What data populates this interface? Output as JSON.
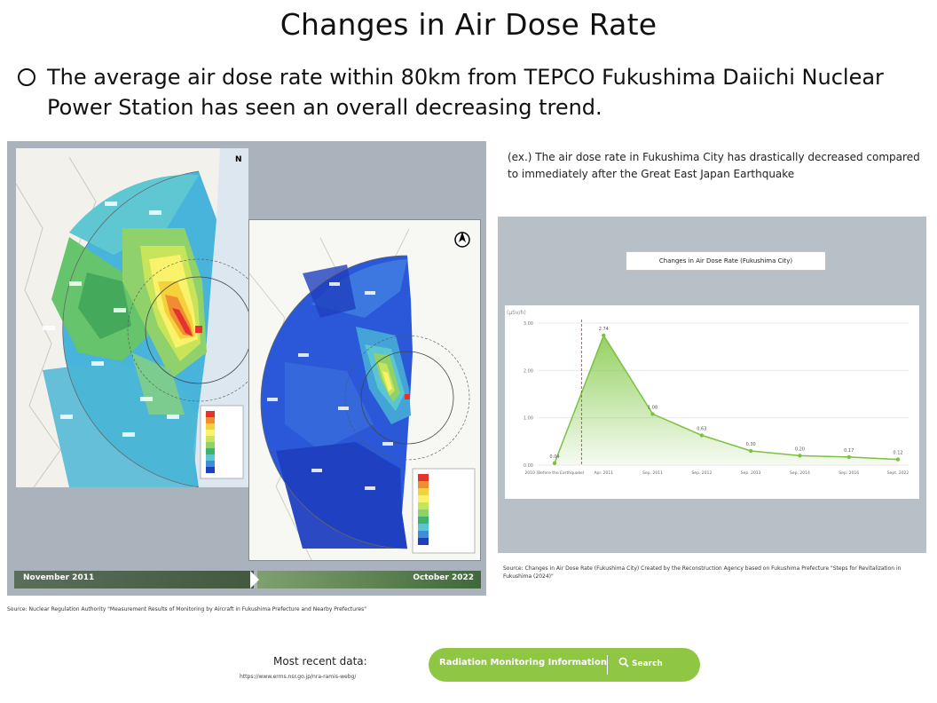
{
  "page": {
    "title": "Changes in Air Dose Rate",
    "bullet": "The average air dose rate within 80km from TEPCO Fukushima Daiichi Nuclear Power Station has seen an overall decreasing trend."
  },
  "left_panel": {
    "timeline_start": "November 2011",
    "timeline_end": "October 2022",
    "compass_label": "N",
    "source": "Source: Nuclear Regulation Authority \"Measurement Results of Monitoring by Aircraft in Fukushima Prefecture and Nearby Prefectures\"",
    "legend_colors": [
      "#e5322f",
      "#f08c32",
      "#f5d13b",
      "#faf26a",
      "#c7e45a",
      "#8fd16b",
      "#3fb36b",
      "#5cc6d0",
      "#3c8fd8",
      "#1f3fbf"
    ]
  },
  "right_panel": {
    "note": "(ex.) The air dose rate in Fukushima City has drastically decreased compared to immediately after the Great East Japan Earthquake",
    "source": "Source: Changes in Air Dose Rate (Fukushima City) Created by the Reconstruction Agency based on Fukushima Prefecture \"Steps for Revitalization in Fukushima (2024)\""
  },
  "chart_data": {
    "type": "area",
    "title": "Changes in Air Dose Rate (Fukushima City)",
    "ylabel": "(µSv/h)",
    "ylim": [
      0,
      3.0
    ],
    "yticks": [
      "0.00",
      "1.00",
      "2.00",
      "3.00"
    ],
    "series": [
      {
        "x": [
          "2010 (Before the Earthquake)",
          "Apr. 2011",
          "Sep. 2011",
          "Sep. 2012",
          "Sep. 2013",
          "Sep. 2014",
          "Sep. 2016",
          "Sept. 2022"
        ],
        "values": [
          0.04,
          2.74,
          1.08,
          0.63,
          0.3,
          0.2,
          0.17,
          0.12
        ],
        "labels": [
          "0.04",
          "2.74",
          "1.08",
          "0.63",
          "0.30",
          "0.20",
          "0.17",
          "0.12"
        ]
      }
    ],
    "line_color": "#7cc142",
    "fill_color": "#8fce5a",
    "marker": "vertical dashed red line at the time of the earthquake"
  },
  "footer": {
    "recent_label": "Most recent data:",
    "url": "https://www.erms.nsr.go.jp/nra-ramis-webg/",
    "button_label": "Radiation Monitoring Information",
    "search_label": "Search"
  }
}
